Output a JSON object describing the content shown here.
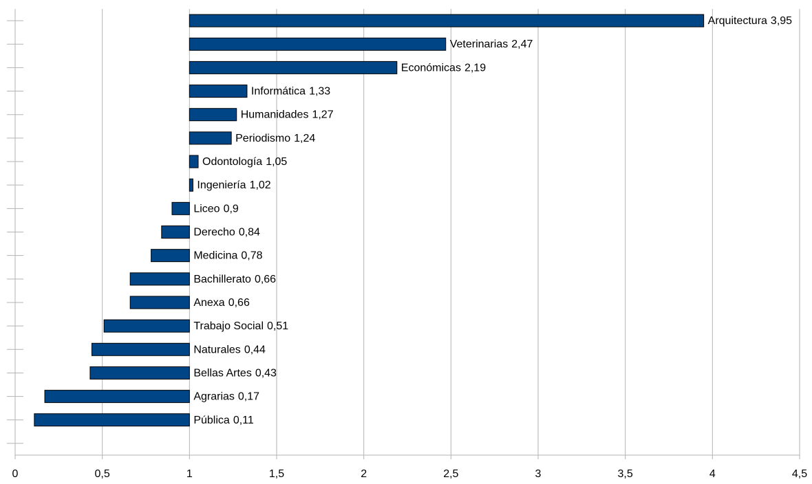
{
  "chart_data": {
    "type": "bar",
    "orientation": "horizontal",
    "baseline": 1,
    "categories": [
      "Arquitectura",
      "Veterinarias",
      "Económicas",
      "Informática",
      "Humanidades",
      "Periodismo",
      "Odontología",
      "Ingeniería",
      "Liceo",
      "Derecho",
      "Medicina",
      "Bachillerato",
      "Anexa",
      "Trabajo Social",
      "Naturales",
      "Bellas Artes",
      "Agrarias",
      "Pública"
    ],
    "values": [
      3.95,
      2.47,
      2.19,
      1.33,
      1.27,
      1.24,
      1.05,
      1.02,
      0.9,
      0.84,
      0.78,
      0.66,
      0.66,
      0.51,
      0.44,
      0.43,
      0.17,
      0.11
    ],
    "value_labels": [
      "3,95",
      "2,47",
      "2,19",
      "1,33",
      "1,27",
      "1,24",
      "1,05",
      "1,02",
      "0,9",
      "0,84",
      "0,78",
      "0,66",
      "0,66",
      "0,51",
      "0,44",
      "0,43",
      "0,17",
      "0,11"
    ],
    "color": "#004586",
    "xlim": [
      0,
      4.5
    ],
    "xticks": [
      0,
      {
        "value": 0.5,
        "label": "0,5"
      },
      1,
      {
        "value": 1.5,
        "label": "1,5"
      },
      2,
      {
        "value": 2.5,
        "label": "2,5"
      },
      3,
      {
        "value": 3.5,
        "label": "3,5"
      },
      4,
      {
        "value": 4.5,
        "label": "4,5"
      }
    ],
    "grid": true
  }
}
